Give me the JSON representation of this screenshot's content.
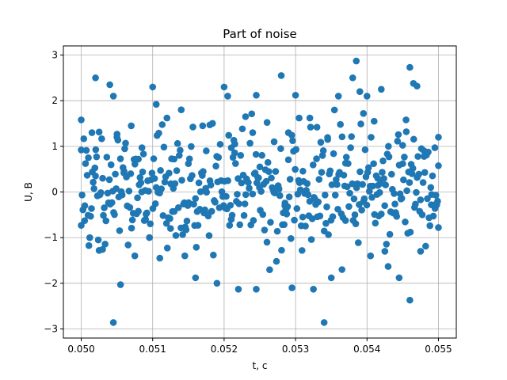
{
  "chart_data": {
    "type": "scatter",
    "title": "Part of noise",
    "xlabel": "t, c",
    "ylabel": "U, B",
    "xlim": [
      0.04975,
      0.05025
    ],
    "ylim": [
      -3.2,
      3.2
    ],
    "xticks": [
      0.05,
      0.051,
      0.052,
      0.053,
      0.054,
      0.055
    ],
    "xtick_labels": [
      "0.050",
      "0.051",
      "0.052",
      "0.053",
      "0.054",
      "0.055"
    ],
    "yticks": [
      -3,
      -2,
      -1,
      0,
      1,
      2,
      3
    ],
    "ytick_labels": [
      "−3",
      "−2",
      "−1",
      "0",
      "1",
      "2",
      "3"
    ],
    "grid": true,
    "marker_color": "#1f77b4",
    "x_range": [
      0.05,
      0.055
    ],
    "y_summary": {
      "min": -2.86,
      "max": 2.87
    },
    "series": [
      {
        "values": [
          [
            0.05,
            1.58
          ],
          [
            0.05,
            0.92
          ],
          [
            0.05005,
            -0.3
          ],
          [
            0.0501,
            0.75
          ],
          [
            0.05015,
            1.3
          ],
          [
            0.0502,
            2.5
          ],
          [
            0.0502,
            0.35
          ],
          [
            0.05025,
            -1.28
          ],
          [
            0.0503,
            0.3
          ],
          [
            0.0504,
            2.35
          ],
          [
            0.05045,
            2.1
          ],
          [
            0.05045,
            -2.86
          ],
          [
            0.0505,
            1.2
          ],
          [
            0.05055,
            -2.03
          ],
          [
            0.0506,
            0.45
          ],
          [
            0.0507,
            1.45
          ],
          [
            0.05075,
            -1.4
          ],
          [
            0.0508,
            0.72
          ],
          [
            0.05085,
            0.97
          ],
          [
            0.0509,
            -0.6
          ],
          [
            0.051,
            2.3
          ],
          [
            0.05105,
            1.92
          ],
          [
            0.0511,
            -1.45
          ],
          [
            0.0512,
            1.62
          ],
          [
            0.05125,
            -0.8
          ],
          [
            0.0513,
            0.72
          ],
          [
            0.0514,
            1.8
          ],
          [
            0.05145,
            -1.4
          ],
          [
            0.0515,
            0.62
          ],
          [
            0.0516,
            -1.88
          ],
          [
            0.0517,
            1.45
          ],
          [
            0.05175,
            0.9
          ],
          [
            0.0518,
            1.47
          ],
          [
            0.0519,
            -2.0
          ],
          [
            0.052,
            2.3
          ],
          [
            0.05205,
            2.1
          ],
          [
            0.0521,
            -0.6
          ],
          [
            0.05215,
            1.05
          ],
          [
            0.0522,
            -2.13
          ],
          [
            0.0523,
            1.65
          ],
          [
            0.0524,
            1.3
          ],
          [
            0.05245,
            -2.13
          ],
          [
            0.05245,
            2.12
          ],
          [
            0.0525,
            0.55
          ],
          [
            0.0526,
            -1.1
          ],
          [
            0.0527,
            1.1
          ],
          [
            0.0528,
            2.55
          ],
          [
            0.05285,
            -0.3
          ],
          [
            0.0529,
            1.3
          ],
          [
            0.05295,
            -2.1
          ],
          [
            0.053,
            2.12
          ],
          [
            0.05305,
            1.62
          ],
          [
            0.0531,
            -0.55
          ],
          [
            0.0532,
            1.62
          ],
          [
            0.05325,
            -2.13
          ],
          [
            0.0533,
            1.42
          ],
          [
            0.0534,
            -2.86
          ],
          [
            0.05345,
            1.15
          ],
          [
            0.0535,
            -1.88
          ],
          [
            0.0536,
            2.1
          ],
          [
            0.05365,
            -1.7
          ],
          [
            0.0537,
            0.63
          ],
          [
            0.0538,
            2.5
          ],
          [
            0.05385,
            2.87
          ],
          [
            0.0539,
            2.2
          ],
          [
            0.05395,
            1.72
          ],
          [
            0.054,
            2.1
          ],
          [
            0.05405,
            -1.4
          ],
          [
            0.0541,
            1.55
          ],
          [
            0.05415,
            0.3
          ],
          [
            0.0542,
            2.25
          ],
          [
            0.05425,
            -1.3
          ],
          [
            0.0543,
            1.0
          ],
          [
            0.0544,
            -0.45
          ],
          [
            0.05445,
            -1.88
          ],
          [
            0.0545,
            0.62
          ],
          [
            0.05455,
            1.32
          ],
          [
            0.0546,
            2.73
          ],
          [
            0.0546,
            -2.37
          ],
          [
            0.05465,
            2.38
          ],
          [
            0.0547,
            2.32
          ],
          [
            0.05475,
            -1.3
          ],
          [
            0.0548,
            0.78
          ],
          [
            0.0549,
            -0.28
          ],
          [
            0.05495,
            0.97
          ],
          [
            0.055,
            1.2
          ],
          [
            0.055,
            -0.78
          ]
        ]
      }
    ]
  }
}
